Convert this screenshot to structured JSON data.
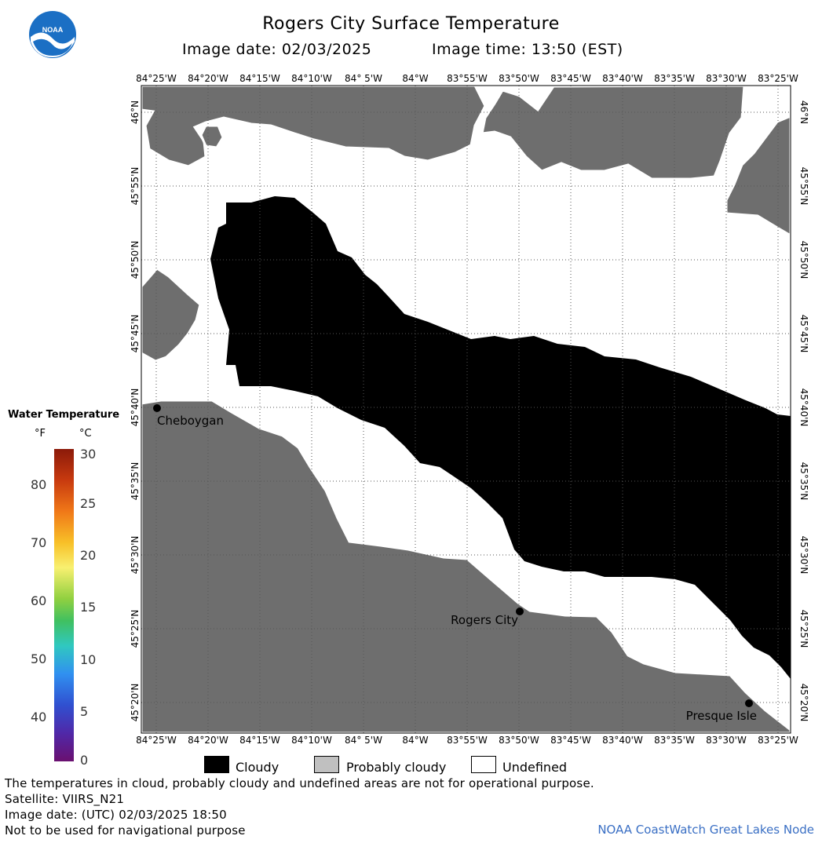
{
  "header": {
    "title": "Rogers City Surface Temperature",
    "image_date": "Image date: 02/03/2025",
    "image_time": "Image time: 13:50 (EST)"
  },
  "logo": {
    "text": "NOAA"
  },
  "map": {
    "lon_labels": [
      "84°25'W",
      "84°20'W",
      "84°15'W",
      "84°10'W",
      "84° 5'W",
      "84°W",
      "83°55'W",
      "83°50'W",
      "83°45'W",
      "83°40'W",
      "83°35'W",
      "83°30'W",
      "83°25'W"
    ],
    "lat_labels": [
      "46°N",
      "45°55'N",
      "45°50'N",
      "45°45'N",
      "45°40'N",
      "45°35'N",
      "45°30'N",
      "45°25'N",
      "45°20'N"
    ],
    "cities": [
      {
        "name": "Cheboygan"
      },
      {
        "name": "Rogers City"
      },
      {
        "name": "Presque Isle"
      }
    ],
    "colors": {
      "land": "#6e6e6e",
      "cloudy": "#000000",
      "undefined": "#ffffff",
      "probably_cloudy": "#c0c0c0"
    }
  },
  "legend": {
    "title": "Water Temperature",
    "unit_f": "°F",
    "unit_c": "°C",
    "fahrenheit_ticks": [
      "80",
      "70",
      "60",
      "50",
      "40"
    ],
    "celsius_ticks": [
      "30",
      "25",
      "20",
      "15",
      "10",
      "5",
      "0"
    ]
  },
  "key": {
    "cloudy": "Cloudy",
    "probably_cloudy": "Probably cloudy",
    "undefined": "Undefined"
  },
  "footer": {
    "line1": "The temperatures in cloud, probably cloudy and undefined areas are not for operational purpose.",
    "line2": "Satellite: VIIRS_N21",
    "line3": "Image date: (UTC) 02/03/2025  18:50",
    "line4": "Not to be used for navigational purpose",
    "credit": "NOAA CoastWatch Great Lakes Node"
  }
}
